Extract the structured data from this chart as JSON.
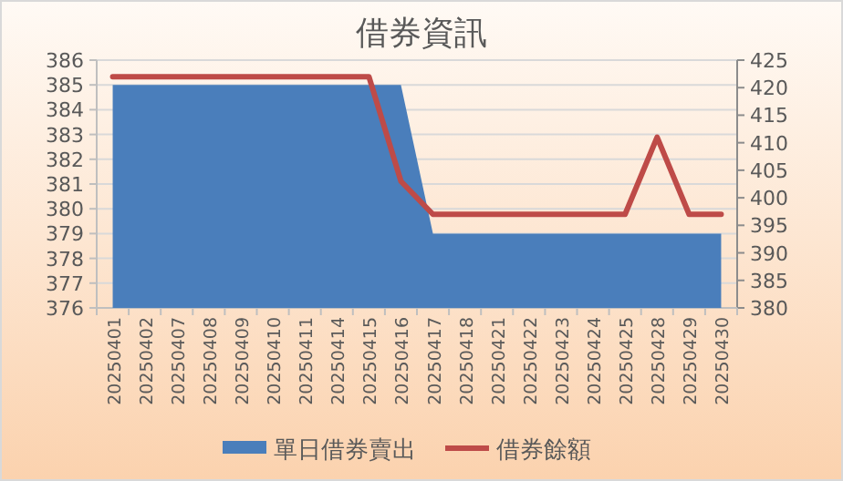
{
  "chart_data": {
    "type": "area",
    "title": "借券資訊",
    "categories": [
      "20250401",
      "20250402",
      "20250407",
      "20250408",
      "20250409",
      "20250410",
      "20250411",
      "20250414",
      "20250415",
      "20250416",
      "20250417",
      "20250418",
      "20250421",
      "20250422",
      "20250423",
      "20250424",
      "20250425",
      "20250428",
      "20250429",
      "20250430"
    ],
    "series": [
      {
        "name": "單日借券賣出",
        "color": "#4a7ebb",
        "values": [
          385,
          385,
          385,
          385,
          385,
          385,
          385,
          385,
          385,
          385,
          379,
          379,
          379,
          379,
          379,
          379,
          379,
          379,
          379,
          379
        ]
      },
      {
        "name": "借券餘額",
        "type": "line",
        "color": "#be4b48",
        "axis": "y2",
        "values": [
          422,
          422,
          422,
          422,
          422,
          422,
          422,
          422,
          422,
          403,
          397,
          397,
          397,
          397,
          397,
          397,
          397,
          411,
          397,
          397
        ]
      }
    ],
    "ylim": [
      376,
      386
    ],
    "yticks": [
      376,
      377,
      378,
      379,
      380,
      381,
      382,
      383,
      384,
      385,
      386
    ],
    "y2lim": [
      380,
      425
    ],
    "y2ticks": [
      380,
      385,
      390,
      395,
      400,
      405,
      410,
      415,
      420,
      425
    ],
    "grid": "y",
    "legend": "bottom",
    "marker": "none"
  }
}
